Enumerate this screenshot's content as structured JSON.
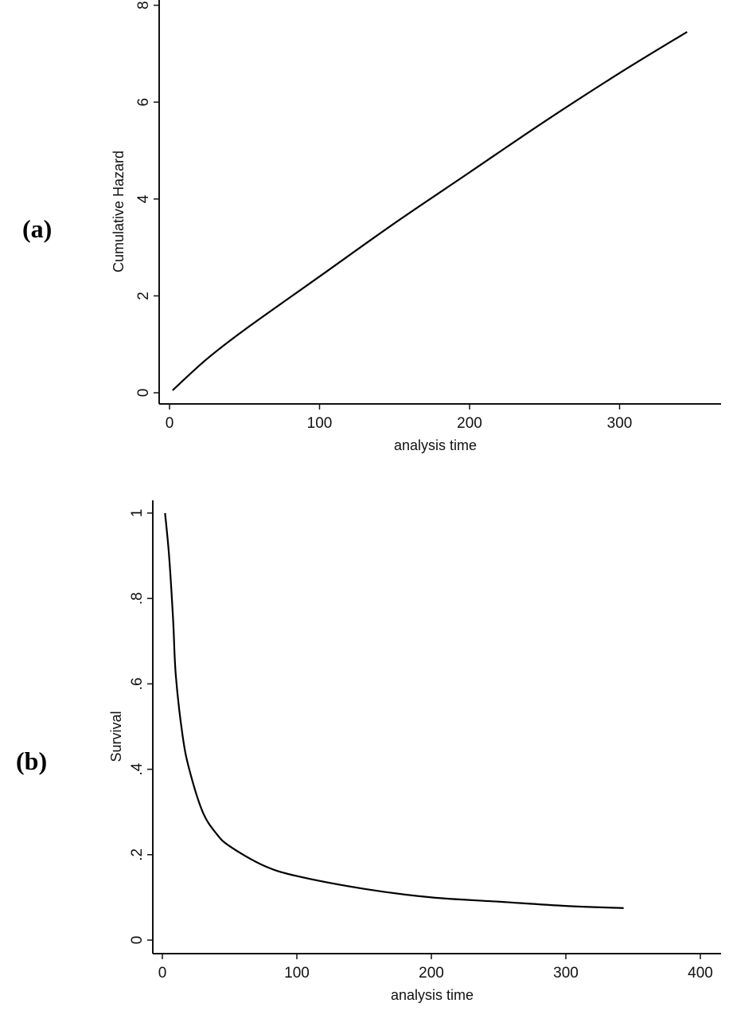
{
  "chart_data": [
    {
      "panel_label": "(a)",
      "type": "line",
      "xlabel": "analysis time",
      "ylabel": "Cumulative Hazard",
      "xticks": [
        "0",
        "100",
        "200",
        "300"
      ],
      "yticks": [
        "0",
        "2",
        "4",
        "6",
        "8"
      ],
      "xlim": [
        0,
        370
      ],
      "ylim": [
        0,
        8
      ],
      "grid": false,
      "series": [
        {
          "name": "Cumulative Hazard",
          "color": "#000000",
          "x": [
            2,
            25,
            50,
            100,
            150,
            200,
            250,
            300,
            345
          ],
          "y": [
            0.05,
            0.7,
            1.3,
            2.4,
            3.5,
            4.55,
            5.6,
            6.6,
            7.45
          ]
        }
      ]
    },
    {
      "panel_label": "(b)",
      "type": "line",
      "xlabel": "analysis time",
      "ylabel": "Survival",
      "xticks": [
        "0",
        "100",
        "200",
        "300",
        "400"
      ],
      "yticks": [
        "0",
        ".2",
        ".4",
        ".6",
        ".8",
        "1"
      ],
      "xlim": [
        0,
        400
      ],
      "ylim": [
        0,
        1
      ],
      "grid": false,
      "series": [
        {
          "name": "Survival",
          "color": "#000000",
          "x": [
            2,
            5,
            8,
            10,
            15,
            20,
            30,
            40,
            50,
            75,
            100,
            150,
            200,
            250,
            300,
            343
          ],
          "y": [
            1.0,
            0.9,
            0.75,
            0.62,
            0.48,
            0.4,
            0.3,
            0.25,
            0.22,
            0.175,
            0.15,
            0.12,
            0.1,
            0.09,
            0.08,
            0.075
          ]
        }
      ]
    }
  ]
}
